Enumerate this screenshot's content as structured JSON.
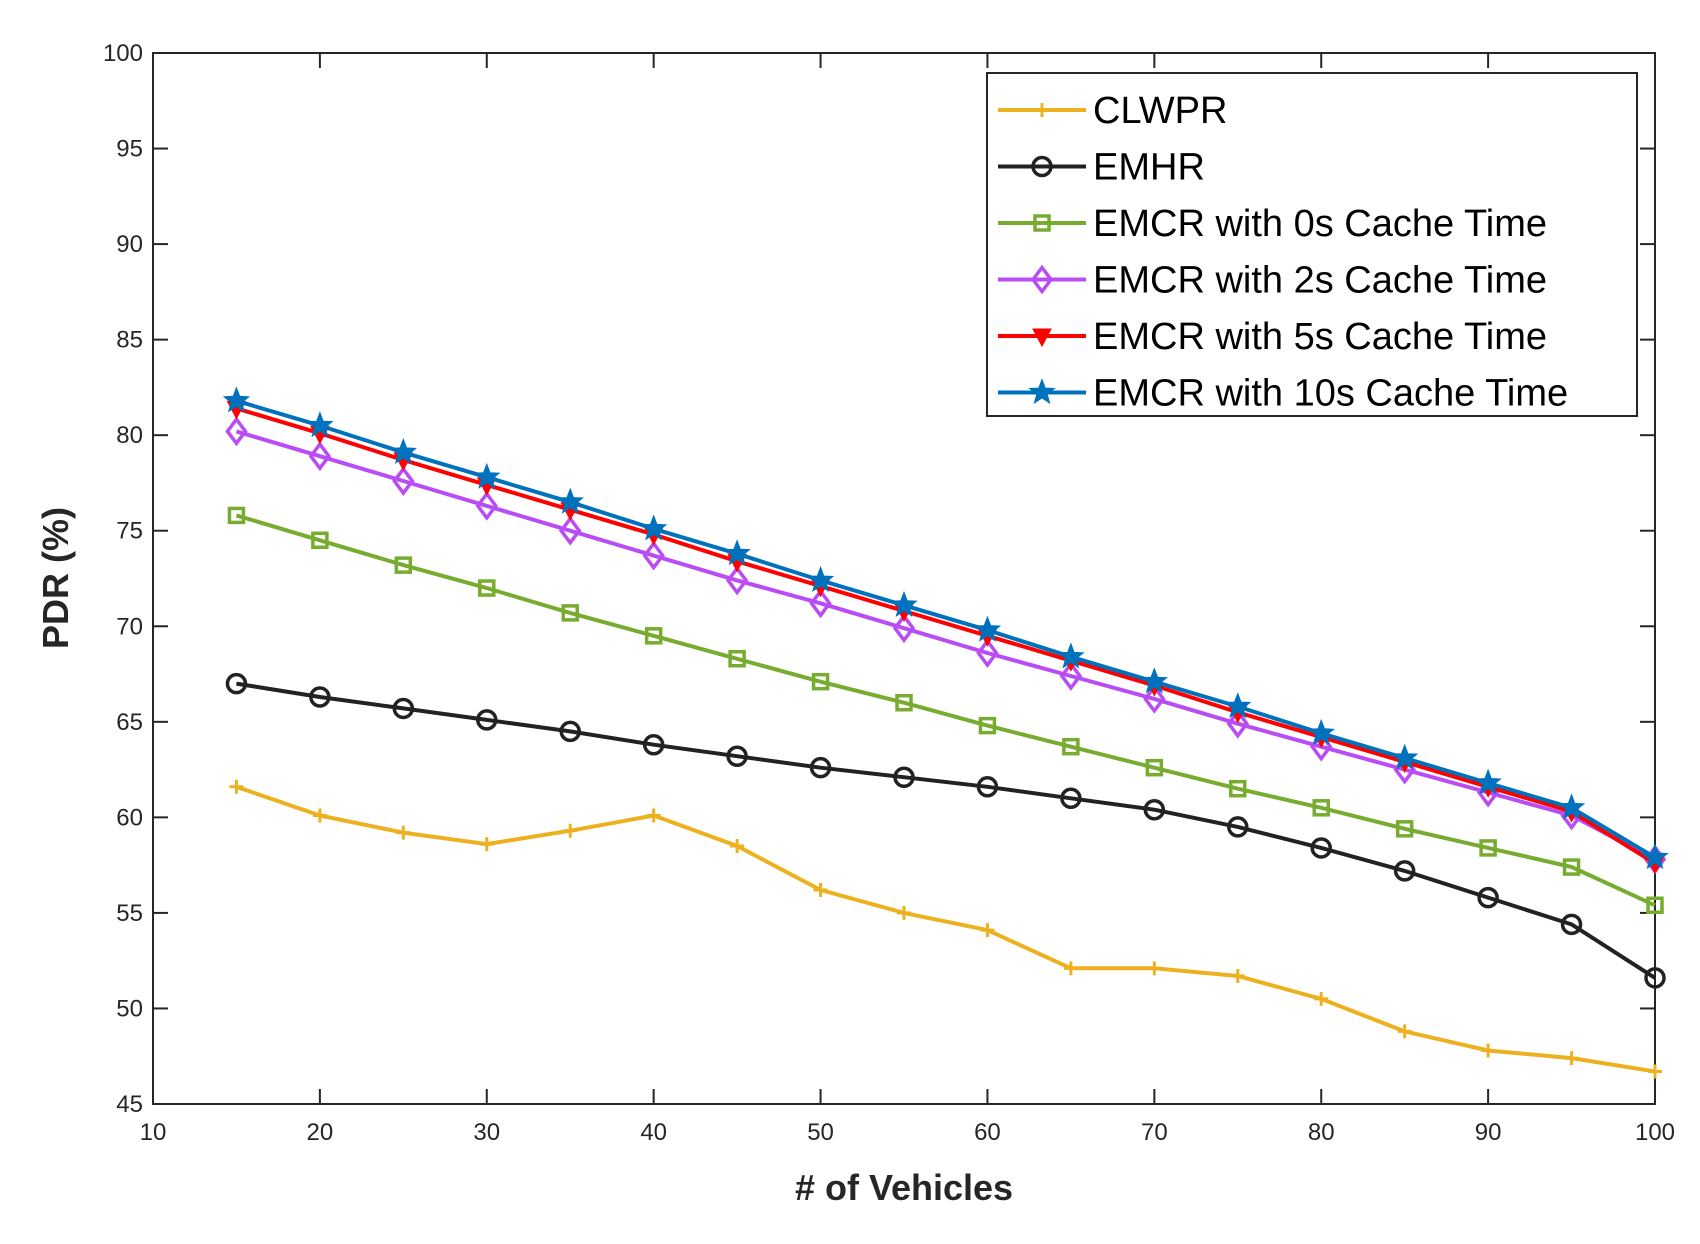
{
  "chart_data": {
    "type": "line",
    "title": "",
    "xlabel": "# of Vehicles",
    "ylabel": "PDR (%)",
    "xlim": [
      10,
      100
    ],
    "ylim": [
      45,
      100
    ],
    "xticks": [
      10,
      20,
      30,
      40,
      50,
      60,
      70,
      80,
      90,
      100
    ],
    "yticks": [
      45,
      50,
      55,
      60,
      65,
      70,
      75,
      80,
      85,
      90,
      95,
      100
    ],
    "grid": false,
    "legend_position": "top-right",
    "x": [
      15,
      20,
      25,
      30,
      35,
      40,
      45,
      50,
      55,
      60,
      65,
      70,
      75,
      80,
      85,
      90,
      95,
      100
    ],
    "series": [
      {
        "name": "CLWPR",
        "color": "#EDB120",
        "marker": "plus",
        "values": [
          61.6,
          60.1,
          59.2,
          58.6,
          59.3,
          60.1,
          58.5,
          56.2,
          55.0,
          54.1,
          52.1,
          52.1,
          51.7,
          50.5,
          48.8,
          47.8,
          47.4,
          46.7
        ]
      },
      {
        "name": "EMHR",
        "color": "#222222",
        "marker": "circle",
        "values": [
          67.0,
          66.3,
          65.7,
          65.1,
          64.5,
          63.8,
          63.2,
          62.6,
          62.1,
          61.6,
          61.0,
          60.4,
          59.5,
          58.4,
          57.2,
          55.8,
          54.4,
          51.6
        ]
      },
      {
        "name": "EMCR with 0s Cache Time",
        "color": "#77AC30",
        "marker": "square",
        "values": [
          75.8,
          74.5,
          73.2,
          72.0,
          70.7,
          69.5,
          68.3,
          67.1,
          66.0,
          64.8,
          63.7,
          62.6,
          61.5,
          60.5,
          59.4,
          58.4,
          57.4,
          55.4
        ]
      },
      {
        "name": "EMCR with 2s Cache Time",
        "color": "#B94CF5",
        "marker": "diamond",
        "values": [
          80.2,
          78.9,
          77.6,
          76.3,
          75.0,
          73.7,
          72.4,
          71.2,
          69.9,
          68.6,
          67.4,
          66.2,
          64.9,
          63.7,
          62.5,
          61.3,
          60.1,
          57.8
        ]
      },
      {
        "name": "EMCR with 5s Cache Time",
        "color": "#FF0000",
        "marker": "triangle-down",
        "values": [
          81.4,
          80.1,
          78.7,
          77.4,
          76.1,
          74.8,
          73.4,
          72.1,
          70.8,
          69.5,
          68.2,
          66.9,
          65.5,
          64.2,
          62.9,
          61.6,
          60.3,
          57.6
        ]
      },
      {
        "name": "EMCR with 10s Cache Time",
        "color": "#0072BD",
        "marker": "star",
        "values": [
          81.8,
          80.5,
          79.1,
          77.8,
          76.5,
          75.1,
          73.8,
          72.4,
          71.1,
          69.8,
          68.4,
          67.1,
          65.8,
          64.4,
          63.1,
          61.8,
          60.5,
          57.9
        ]
      }
    ]
  }
}
